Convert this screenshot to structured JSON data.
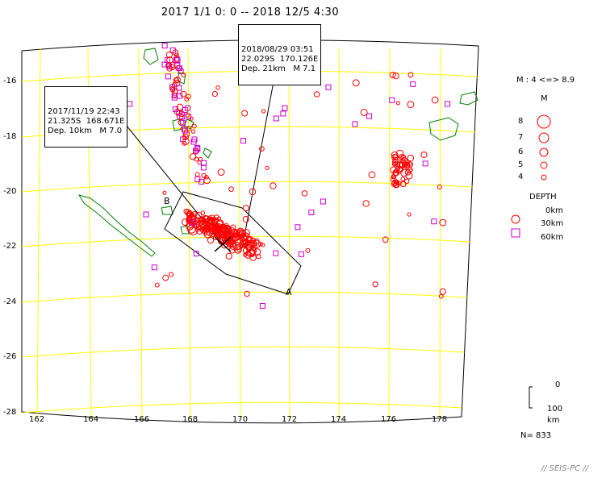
{
  "title": "2017 1/1 0: 0 -- 2018 12/5 4:30",
  "lat_labels": [
    "-16",
    "-18",
    "-20",
    "-22",
    "-24",
    "-26",
    "-28"
  ],
  "lon_labels": [
    "162",
    "164",
    "166",
    "168",
    "170",
    "172",
    "174",
    "176",
    "178"
  ],
  "callouts": [
    {
      "line1": "2017/11/19 22:43",
      "line2": "21.325S  168.671E",
      "line3": "Dep. 10km   M 7.0"
    },
    {
      "line1": "2018/08/29 03:51",
      "line2": "22.029S  170.126E",
      "line3": "Dep. 21km   M 7.1"
    }
  ],
  "section_labels": {
    "a": "A",
    "b": "B"
  },
  "legend": {
    "mag_range": "M : 4 <=> 8.9",
    "mag_title": "M",
    "mags": [
      "8",
      "7",
      "6",
      "5",
      "4"
    ],
    "depth_title": "DEPTH",
    "depths": [
      "0km",
      "30km",
      "60km"
    ],
    "scale_top": "0",
    "scale_bottom": "100",
    "scale_unit": "km",
    "count": "N= 833"
  },
  "footer": "// SEIS-PC //",
  "colors": {
    "grid": "#ffff00",
    "coast": "#008000",
    "shallow": "#ff0000",
    "deep": "#cc00cc",
    "frame": "#000000"
  }
}
